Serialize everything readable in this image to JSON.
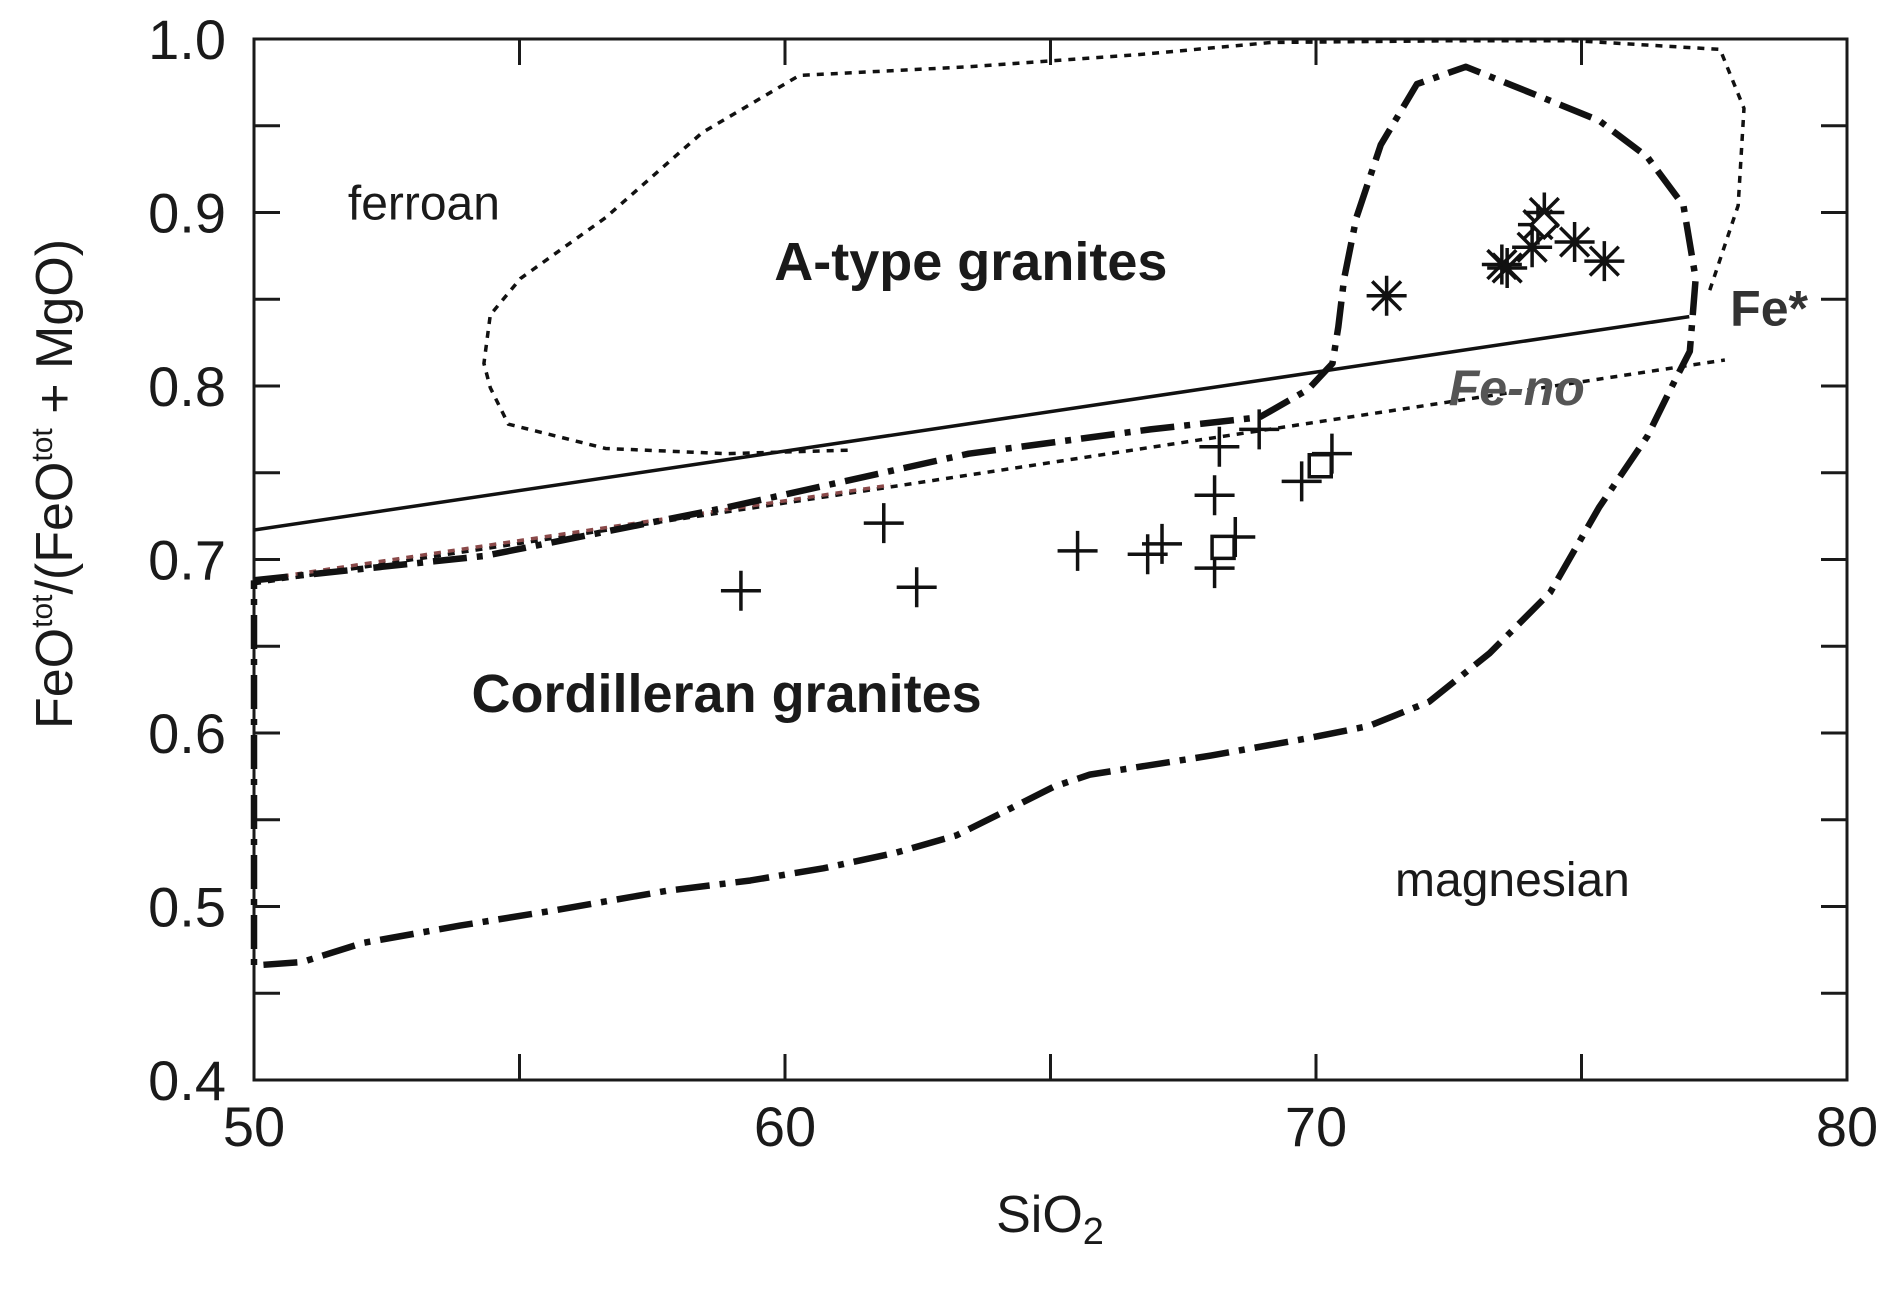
{
  "chart_data": {
    "type": "scatter",
    "x_label": [
      "SiO",
      "2"
    ],
    "y_label": [
      "FeO",
      "tot",
      "/(FeO",
      "tot",
      " + MgO)"
    ],
    "xlim": [
      50,
      80
    ],
    "ylim": [
      0.4,
      1.0
    ],
    "xticks": [
      50,
      60,
      70,
      80
    ],
    "yticks": [
      0.4,
      0.5,
      0.6,
      0.7,
      0.8,
      0.9,
      {
        "value": 1.0,
        "label": "1.0"
      }
    ],
    "xminorticks": [
      55,
      65,
      75
    ],
    "yminorticks": [
      0.45,
      0.55,
      0.65,
      0.75,
      0.85,
      0.95
    ],
    "annotations": [
      "ferroan",
      "A-type granites",
      "Cordilleran granites",
      "magnesian",
      "Fe*",
      "Fe-no"
    ],
    "series": [
      {
        "mark": "plus",
        "color": "#111111",
        "x": [
          59.17,
          61.86,
          62.48,
          65.51,
          66.83,
          67.1,
          68.09,
          68.48,
          68.09,
          68.18,
          68.93,
          69.73,
          70.3
        ],
        "values": [
          0.682,
          0.721,
          0.684,
          0.705,
          0.703,
          0.709,
          0.695,
          0.713,
          0.737,
          0.765,
          0.775,
          0.745,
          0.761
        ]
      },
      {
        "mark": "square",
        "color": "#111111",
        "x": [
          68.25,
          70.08
        ],
        "values": [
          0.707,
          0.754
        ]
      },
      {
        "mark": "asterisk",
        "color": "#111111",
        "x": [
          71.33,
          73.5,
          73.6,
          74.3,
          74.18,
          74.87,
          75.43,
          74.07
        ],
        "values": [
          0.852,
          0.87,
          0.868,
          0.9,
          0.893,
          0.883,
          0.872,
          0.88
        ]
      },
      {
        "mark": "diamond",
        "color": "#111111",
        "x": [
          74.3
        ],
        "values": [
          0.893
        ]
      },
      {
        "mark": "line",
        "style": "solid",
        "color": "#111111",
        "x": [
          50,
          77.03
        ],
        "values": [
          0.717,
          0.84
        ]
      },
      {
        "mark": "line",
        "style": "dotted",
        "color": "#111111",
        "x": [
          50,
          77.7
        ],
        "values": [
          0.686,
          0.815
        ]
      },
      {
        "mark": "line",
        "style": "dotted",
        "color": "#8b4a4a",
        "x": [
          50,
          62
        ],
        "values": [
          0.688,
          0.743
        ]
      },
      {
        "mark": "line",
        "style": "dotted",
        "color": "#111111",
        "x": [
          61.18,
          58.9,
          56.62,
          54.79,
          54.45,
          54.33,
          54.45,
          55.02,
          56.62,
          58.44,
          60.27,
          63.46,
          66.66,
          69.16,
          72.59,
          74.87,
          77.61,
          78.06,
          77.95,
          77.38
        ],
        "values": [
          0.763,
          0.761,
          0.764,
          0.778,
          0.799,
          0.813,
          0.841,
          0.862,
          0.897,
          0.946,
          0.979,
          0.984,
          0.991,
          0.998,
          0.999,
          0.999,
          0.994,
          0.96,
          0.904,
          0.852
        ]
      },
      {
        "mark": "line",
        "style": "dashdot",
        "color": "#111111",
        "x": [
          50,
          54.33,
          58.9,
          63.46,
          66.88,
          68.94,
          69.85,
          70.31,
          70.42,
          70.53,
          70.76,
          71.22,
          71.9,
          72.82,
          73.96,
          75.33,
          76.24,
          76.92,
          77.15,
          77.04,
          76.69,
          76.24,
          75.33,
          74.41,
          73.27,
          72.13,
          70.99,
          69.85,
          68.02,
          65.74,
          65.06,
          64.15,
          63.23,
          62.09,
          60.72,
          59.35,
          57.76,
          55.7,
          53.88,
          52.05,
          50.91,
          50,
          50
        ],
        "values": [
          0.688,
          0.702,
          0.73,
          0.761,
          0.775,
          0.782,
          0.798,
          0.813,
          0.834,
          0.862,
          0.897,
          0.939,
          0.974,
          0.984,
          0.97,
          0.953,
          0.932,
          0.904,
          0.862,
          0.82,
          0.799,
          0.771,
          0.73,
          0.681,
          0.646,
          0.618,
          0.604,
          0.597,
          0.587,
          0.576,
          0.569,
          0.555,
          0.541,
          0.531,
          0.522,
          0.515,
          0.509,
          0.498,
          0.489,
          0.479,
          0.468,
          0.466,
          0.688
        ]
      }
    ]
  }
}
